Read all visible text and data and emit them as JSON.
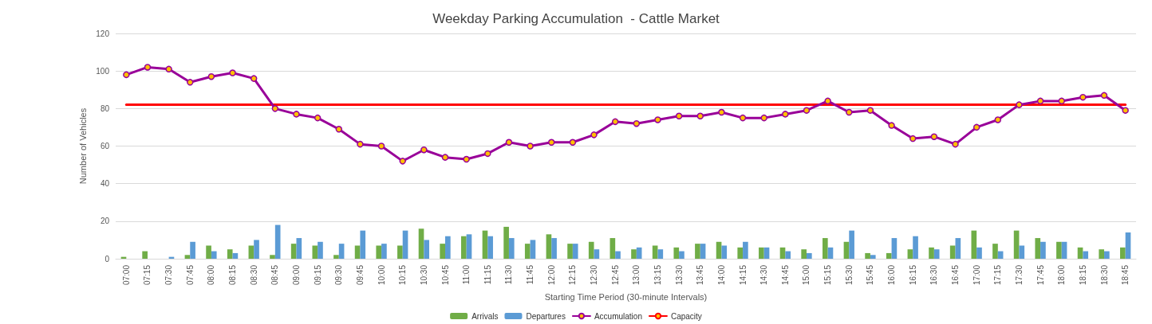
{
  "chart_data": {
    "type": "bar",
    "title": "Weekday Parking Accumulation  - Cattle Market",
    "xlabel": "Starting Time Period (30-minute Intervals)",
    "ylabel": "Number of Vehicles",
    "categories": [
      "07:00",
      "07:15",
      "07:30",
      "07:45",
      "08:00",
      "08:15",
      "08:30",
      "08:45",
      "09:00",
      "09:15",
      "09:30",
      "09:45",
      "10:00",
      "10:15",
      "10:30",
      "10:45",
      "11:00",
      "11:15",
      "11:30",
      "11:45",
      "12:00",
      "12:15",
      "12:30",
      "12:45",
      "13:00",
      "13:15",
      "13:30",
      "13:45",
      "14:00",
      "14:15",
      "14:30",
      "14:45",
      "15:00",
      "15:15",
      "15:30",
      "15:45",
      "16:00",
      "16:15",
      "16:30",
      "16:45",
      "17:00",
      "17:15",
      "17:30",
      "17:45",
      "18:00",
      "18:15",
      "18:30",
      "18:45"
    ],
    "series": [
      {
        "name": "Arrivals",
        "color": "#70ad47",
        "values": [
          1,
          4,
          0,
          2,
          7,
          5,
          7,
          2,
          8,
          7,
          2,
          7,
          7,
          7,
          16,
          8,
          12,
          15,
          17,
          8,
          13,
          8,
          9,
          11,
          5,
          7,
          6,
          8,
          9,
          6,
          6,
          6,
          5,
          11,
          9,
          3,
          3,
          5,
          6,
          7,
          15,
          8,
          15,
          11,
          9,
          6,
          5,
          6
        ]
      },
      {
        "name": "Departures",
        "color": "#5b9bd5",
        "values": [
          0,
          0,
          1,
          9,
          4,
          3,
          10,
          18,
          11,
          9,
          8,
          15,
          8,
          15,
          10,
          12,
          13,
          12,
          11,
          10,
          11,
          8,
          5,
          4,
          6,
          5,
          4,
          8,
          7,
          9,
          6,
          4,
          3,
          6,
          15,
          2,
          11,
          12,
          5,
          11,
          6,
          4,
          7,
          9,
          9,
          4,
          4,
          14
        ]
      },
      {
        "name": "Accumulation",
        "type": "line",
        "color": "#990099",
        "marker": "circle",
        "values": [
          98,
          102,
          101,
          94,
          97,
          99,
          96,
          80,
          77,
          75,
          69,
          61,
          60,
          52,
          58,
          54,
          53,
          56,
          62,
          60,
          62,
          62,
          66,
          73,
          72,
          74,
          76,
          76,
          78,
          75,
          75,
          77,
          79,
          84,
          78,
          79,
          71,
          64,
          65,
          61,
          70,
          74,
          82,
          84,
          84,
          86,
          87,
          79
        ]
      },
      {
        "name": "Capacity",
        "type": "line",
        "color": "#ff0000",
        "marker": "none",
        "values": [
          82,
          82,
          82,
          82,
          82,
          82,
          82,
          82,
          82,
          82,
          82,
          82,
          82,
          82,
          82,
          82,
          82,
          82,
          82,
          82,
          82,
          82,
          82,
          82,
          82,
          82,
          82,
          82,
          82,
          82,
          82,
          82,
          82,
          82,
          82,
          82,
          82,
          82,
          82,
          82,
          82,
          82,
          82,
          82,
          82,
          82,
          82,
          82
        ]
      }
    ],
    "ylim": [
      0,
      120
    ],
    "yticks": [
      0,
      20,
      40,
      60,
      80,
      100,
      120
    ],
    "grid": "y",
    "legend": "bottom"
  }
}
